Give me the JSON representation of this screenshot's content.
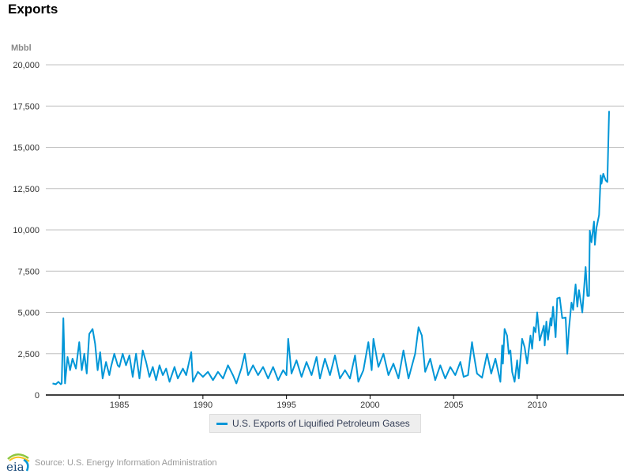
{
  "chart_data": {
    "type": "line",
    "title": "Exports",
    "ylabel": "Mbbl",
    "xlabel": "",
    "ylim": [
      0,
      20000
    ],
    "xlim": [
      1980.6,
      2015.2
    ],
    "yticks": [
      0,
      2500,
      5000,
      7500,
      10000,
      12500,
      15000,
      17500,
      20000
    ],
    "ytick_labels": [
      "0",
      "2,500",
      "5,000",
      "7,500",
      "10,000",
      "12,500",
      "15,000",
      "17,500",
      "20,000"
    ],
    "xticks": [
      1985,
      1990,
      1995,
      2000,
      2005,
      2010
    ],
    "xtick_labels": [
      "1985",
      "1990",
      "1995",
      "2000",
      "2005",
      "2010"
    ],
    "grid": true,
    "legend_position": "bottom-center",
    "series": [
      {
        "name": "U.S. Exports of Liquified Petroleum Gases",
        "color": "#0096d7",
        "x": [
          1981.0,
          1981.2,
          1981.35,
          1981.5,
          1981.55,
          1981.65,
          1981.75,
          1981.9,
          1982.05,
          1982.2,
          1982.4,
          1982.6,
          1982.75,
          1982.9,
          1983.05,
          1983.2,
          1983.4,
          1983.55,
          1983.7,
          1983.85,
          1984.0,
          1984.2,
          1984.4,
          1984.5,
          1984.7,
          1984.9,
          1985.0,
          1985.2,
          1985.4,
          1985.6,
          1985.8,
          1986.0,
          1986.2,
          1986.4,
          1986.6,
          1986.8,
          1987.0,
          1987.2,
          1987.4,
          1987.6,
          1987.8,
          1988.0,
          1988.3,
          1988.5,
          1988.8,
          1989.0,
          1989.3,
          1989.4,
          1989.7,
          1990.0,
          1990.3,
          1990.6,
          1990.9,
          1991.2,
          1991.5,
          1991.8,
          1992.0,
          1992.3,
          1992.5,
          1992.7,
          1993.0,
          1993.3,
          1993.6,
          1993.9,
          1994.2,
          1994.5,
          1994.8,
          1995.0,
          1995.1,
          1995.3,
          1995.6,
          1995.9,
          1996.2,
          1996.5,
          1996.8,
          1997.0,
          1997.3,
          1997.6,
          1997.9,
          1998.2,
          1998.5,
          1998.8,
          1999.1,
          1999.3,
          1999.6,
          1999.9,
          2000.1,
          2000.2,
          2000.5,
          2000.8,
          2001.1,
          2001.4,
          2001.7,
          2002.0,
          2002.3,
          2002.7,
          2002.9,
          2003.1,
          2003.3,
          2003.6,
          2003.9,
          2004.2,
          2004.5,
          2004.8,
          2005.1,
          2005.4,
          2005.6,
          2005.86,
          2006.1,
          2006.2,
          2006.4,
          2006.7,
          2007.0,
          2007.25,
          2007.5,
          2007.8,
          2007.9,
          2007.95,
          2008.05,
          2008.2,
          2008.3,
          2008.4,
          2008.5,
          2008.65,
          2008.8,
          2008.9,
          2009.1,
          2009.25,
          2009.4,
          2009.6,
          2009.7,
          2009.8,
          2009.9,
          2010.0,
          2010.15,
          2010.4,
          2010.45,
          2010.55,
          2010.65,
          2010.8,
          2010.85,
          2010.95,
          2011.1,
          2011.2,
          2011.35,
          2011.5,
          2011.7,
          2011.8,
          2011.9,
          2012.05,
          2012.15,
          2012.3,
          2012.4,
          2012.5,
          2012.7,
          2012.9,
          2013.0,
          2013.1,
          2013.15,
          2013.25,
          2013.4,
          2013.45,
          2013.55,
          2013.7,
          2013.8,
          2013.85,
          2013.95,
          2014.1,
          2014.2,
          2014.3
        ],
        "values": [
          700,
          650,
          800,
          650,
          700,
          4650,
          700,
          2300,
          1500,
          2200,
          1600,
          3200,
          1500,
          2500,
          1300,
          3700,
          4000,
          3100,
          1500,
          2600,
          1000,
          2000,
          1200,
          1700,
          2500,
          1800,
          1700,
          2500,
          1800,
          2400,
          1100,
          2500,
          1000,
          2700,
          2000,
          1100,
          1700,
          900,
          1800,
          1200,
          1600,
          800,
          1700,
          1000,
          1600,
          1200,
          2600,
          800,
          1400,
          1100,
          1400,
          900,
          1400,
          1000,
          1800,
          1200,
          700,
          1600,
          2500,
          1200,
          1800,
          1200,
          1700,
          1000,
          1700,
          900,
          1500,
          1200,
          3400,
          1300,
          2100,
          1100,
          2000,
          1200,
          2300,
          1000,
          2200,
          1200,
          2400,
          1000,
          1500,
          1000,
          2400,
          800,
          1500,
          3200,
          1500,
          3400,
          1700,
          2500,
          1200,
          1900,
          1000,
          2700,
          1000,
          2500,
          4100,
          3600,
          1400,
          2200,
          900,
          1800,
          1000,
          1700,
          1200,
          2000,
          1100,
          1200,
          3200,
          2500,
          1300,
          1050,
          2500,
          1300,
          2200,
          800,
          3000,
          1900,
          4000,
          3600,
          2500,
          2700,
          1400,
          800,
          2100,
          1000,
          3400,
          2900,
          1900,
          3600,
          2800,
          4100,
          3800,
          5000,
          3300,
          4200,
          3000,
          4450,
          3350,
          4650,
          4200,
          5350,
          3500,
          5850,
          5900,
          4650,
          4700,
          2500,
          4000,
          5600,
          5150,
          6700,
          5350,
          6350,
          5000,
          7750,
          6000,
          6000,
          9950,
          9250,
          10500,
          9100,
          10150,
          10900,
          13300,
          12800,
          13400,
          13000,
          12900,
          17200
        ]
      }
    ]
  },
  "footer": {
    "source": "Source: U.S. Energy Information Administration",
    "logo_text": "eia"
  }
}
